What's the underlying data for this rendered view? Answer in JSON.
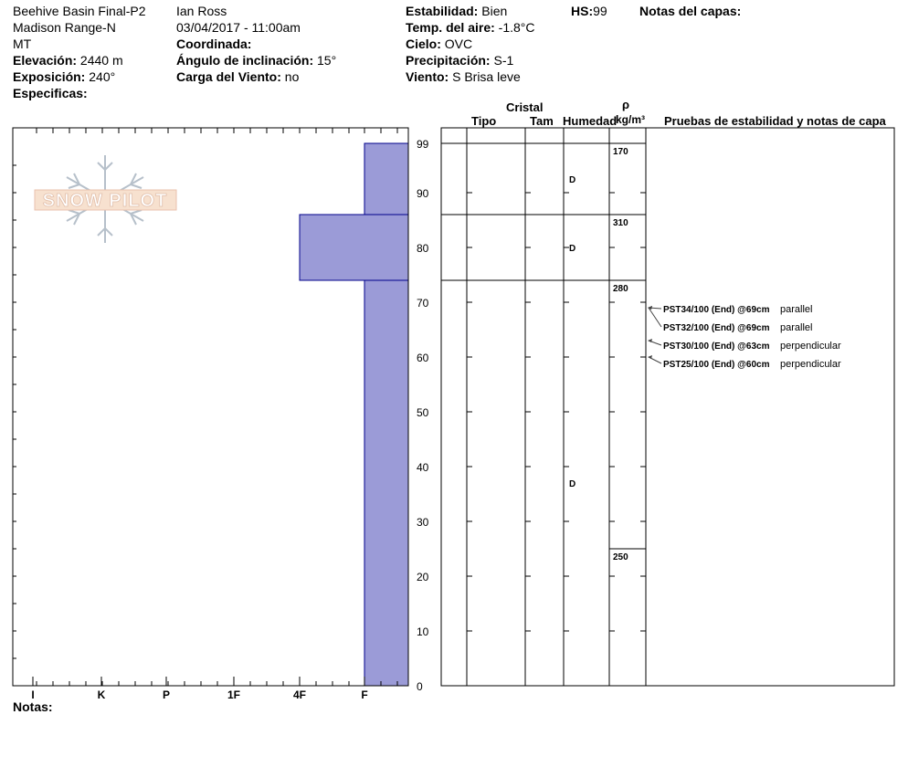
{
  "header": {
    "col1": {
      "location": "Beehive Basin Final-P2",
      "range": "Madison Range-N",
      "state": "MT",
      "elevation_label": "Elevación:",
      "elevation_value": "2440 m",
      "aspect_label": "Exposición:",
      "aspect_value": "240°",
      "specifics_label": "Especificas:"
    },
    "col2": {
      "observer": "Ian Ross",
      "datetime": "03/04/2017 - 11:00am",
      "coord_label": "Coordinada:",
      "slope_label": "Ángulo de inclinación:",
      "slope_value": "15°",
      "wind_load_label": "Carga del Viento:",
      "wind_load_value": "no"
    },
    "col3": {
      "stability_label": "Estabilidad:",
      "stability_value": "Bien",
      "air_temp_label": "Temp. del aire:",
      "air_temp_value": "-1.8°C",
      "sky_label": "Cielo:",
      "sky_value": "OVC",
      "precip_label": "Precipitación:",
      "precip_value": "S-1",
      "wind_label": "Viento:",
      "wind_value": "S Brisa leve"
    },
    "hs_label": "HS:",
    "hs_value": "99",
    "layer_notes_label": "Notas del capas:"
  },
  "logo_text": "SNOW PILOT",
  "table_headers": {
    "crystal": "Cristal",
    "type": "Tipo",
    "size": "Tam",
    "moisture": "Humedad",
    "rho": "ρ",
    "density_unit": "kg/m³",
    "tests": "Pruebas de estabilidad y notas de capa"
  },
  "notes_label": "Notas:",
  "chart_data": {
    "type": "bar",
    "orientation": "horizontal-step",
    "description_axes": "hardness profile vs height",
    "x_categories": [
      "I",
      "K",
      "P",
      "1F",
      "4F",
      "F"
    ],
    "y_ticks": [
      0,
      10,
      20,
      30,
      40,
      50,
      60,
      70,
      80,
      90,
      99
    ],
    "ylim": [
      0,
      99
    ],
    "layers": [
      {
        "top": 99,
        "bottom": 86,
        "hardness": "F",
        "moisture": "D",
        "density": "170"
      },
      {
        "top": 86,
        "bottom": 74,
        "hardness": "4F",
        "moisture": "D",
        "density": "310"
      },
      {
        "top": 74,
        "bottom": 0,
        "hardness": "F",
        "moisture": "D",
        "density": "280"
      }
    ],
    "density_markers": [
      {
        "height": 99,
        "value": "170"
      },
      {
        "height": 86,
        "value": "310"
      },
      {
        "height": 74,
        "value": "280"
      },
      {
        "height": 25,
        "value": "250"
      }
    ],
    "stability_tests": [
      {
        "height": 69,
        "label": "PST34/100 (End) @69cm",
        "orientation": "parallel"
      },
      {
        "height": 69,
        "label": "PST32/100 (End) @69cm",
        "orientation": "parallel"
      },
      {
        "height": 63,
        "label": "PST30/100 (End) @63cm",
        "orientation": "perpendicular"
      },
      {
        "height": 60,
        "label": "PST25/100 (End) @60cm",
        "orientation": "perpendicular"
      }
    ],
    "bar_color": "#9b9bd7",
    "bar_edge": "#00008b"
  }
}
